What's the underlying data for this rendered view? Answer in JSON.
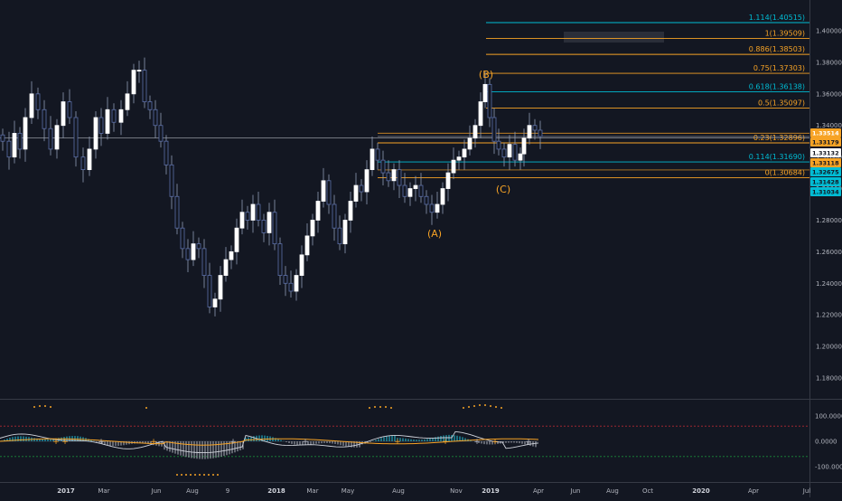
{
  "price_axis": {
    "ticks": [
      "1.40000",
      "1.38000",
      "1.36000",
      "1.34000",
      "1.32000",
      "1.30000",
      "1.28000",
      "1.26000",
      "1.24000",
      "1.22000",
      "1.20000",
      "1.18000"
    ],
    "tick_values": [
      1.4,
      1.38,
      1.36,
      1.34,
      1.32,
      1.3,
      1.28,
      1.26,
      1.24,
      1.22,
      1.2,
      1.18
    ]
  },
  "price_tags": [
    {
      "label": "1.33514",
      "value": 1.33514,
      "bg": "#f7a325",
      "fg": "#ffffff"
    },
    {
      "label": "1.33179",
      "value": 1.33179,
      "bg": "#f7a325",
      "fg": "#131722"
    },
    {
      "label": "1.33132",
      "value": 1.33132,
      "bg": "#ffffff",
      "fg": "#131722"
    },
    {
      "label": "1.33118",
      "value": 1.33118,
      "bg": "#f7a325",
      "fg": "#131722"
    },
    {
      "label": "1.32675",
      "value": 1.32675,
      "bg": "#00bcd4",
      "fg": "#131722"
    },
    {
      "label": "1.31428",
      "value": 1.31428,
      "bg": "#00bcd4",
      "fg": "#131722"
    },
    {
      "label": "1.31034",
      "value": 1.31034,
      "bg": "#00bcd4",
      "fg": "#131722"
    }
  ],
  "fib_levels": [
    {
      "label": "1.114(1.40515)",
      "value": 1.40515,
      "color": "#00bcd4"
    },
    {
      "label": "1(1.39509)",
      "value": 1.39509,
      "color": "#f7a325"
    },
    {
      "label": "0.886(1.38503)",
      "value": 1.38503,
      "color": "#f7a325"
    },
    {
      "label": "0.75(1.37303)",
      "value": 1.37303,
      "color": "#f7a325"
    },
    {
      "label": "0.618(1.36138)",
      "value": 1.36138,
      "color": "#00bcd4"
    },
    {
      "label": "0.5(1.35097)",
      "value": 1.35097,
      "color": "#f7a325"
    },
    {
      "label": "0.23(1.32896)",
      "value": 1.32896,
      "color": "#f7a325"
    },
    {
      "label": "0.114(1.31690)",
      "value": 1.3169,
      "color": "#00bcd4"
    },
    {
      "label": "0(1.30684)",
      "value": 1.30684,
      "color": "#f7a325"
    }
  ],
  "waves": [
    {
      "label": "(B)"
    },
    {
      "label": "(C)"
    },
    {
      "label": "(A)"
    }
  ],
  "time_axis": {
    "labels": [
      {
        "text": "2017",
        "bold": true
      },
      {
        "text": "Mar",
        "bold": false
      },
      {
        "text": "Jun",
        "bold": false
      },
      {
        "text": "Aug",
        "bold": false
      },
      {
        "text": "9",
        "bold": false
      },
      {
        "text": "2018",
        "bold": true
      },
      {
        "text": "Mar",
        "bold": false
      },
      {
        "text": "May",
        "bold": false
      },
      {
        "text": "Aug",
        "bold": false
      },
      {
        "text": "Nov",
        "bold": false
      },
      {
        "text": "2019",
        "bold": true
      },
      {
        "text": "Apr",
        "bold": false
      },
      {
        "text": "Jun",
        "bold": false
      },
      {
        "text": "Aug",
        "bold": false
      },
      {
        "text": "Oct",
        "bold": false
      },
      {
        "text": "2020",
        "bold": true
      },
      {
        "text": "Apr",
        "bold": false
      },
      {
        "text": "Jul",
        "bold": false
      }
    ]
  },
  "oscillator": {
    "ticks": [
      "100.0000",
      "0.0000",
      "-100.0000"
    ],
    "tick_values": [
      100,
      0,
      -100
    ],
    "upper_level": 60,
    "lower_level": -60
  },
  "colors": {
    "background": "#131722",
    "grid": "#363a45",
    "orange": "#f7a325",
    "cyan": "#00bcd4",
    "candle_up": "#ffffff",
    "candle_down": "#ffffff"
  }
}
